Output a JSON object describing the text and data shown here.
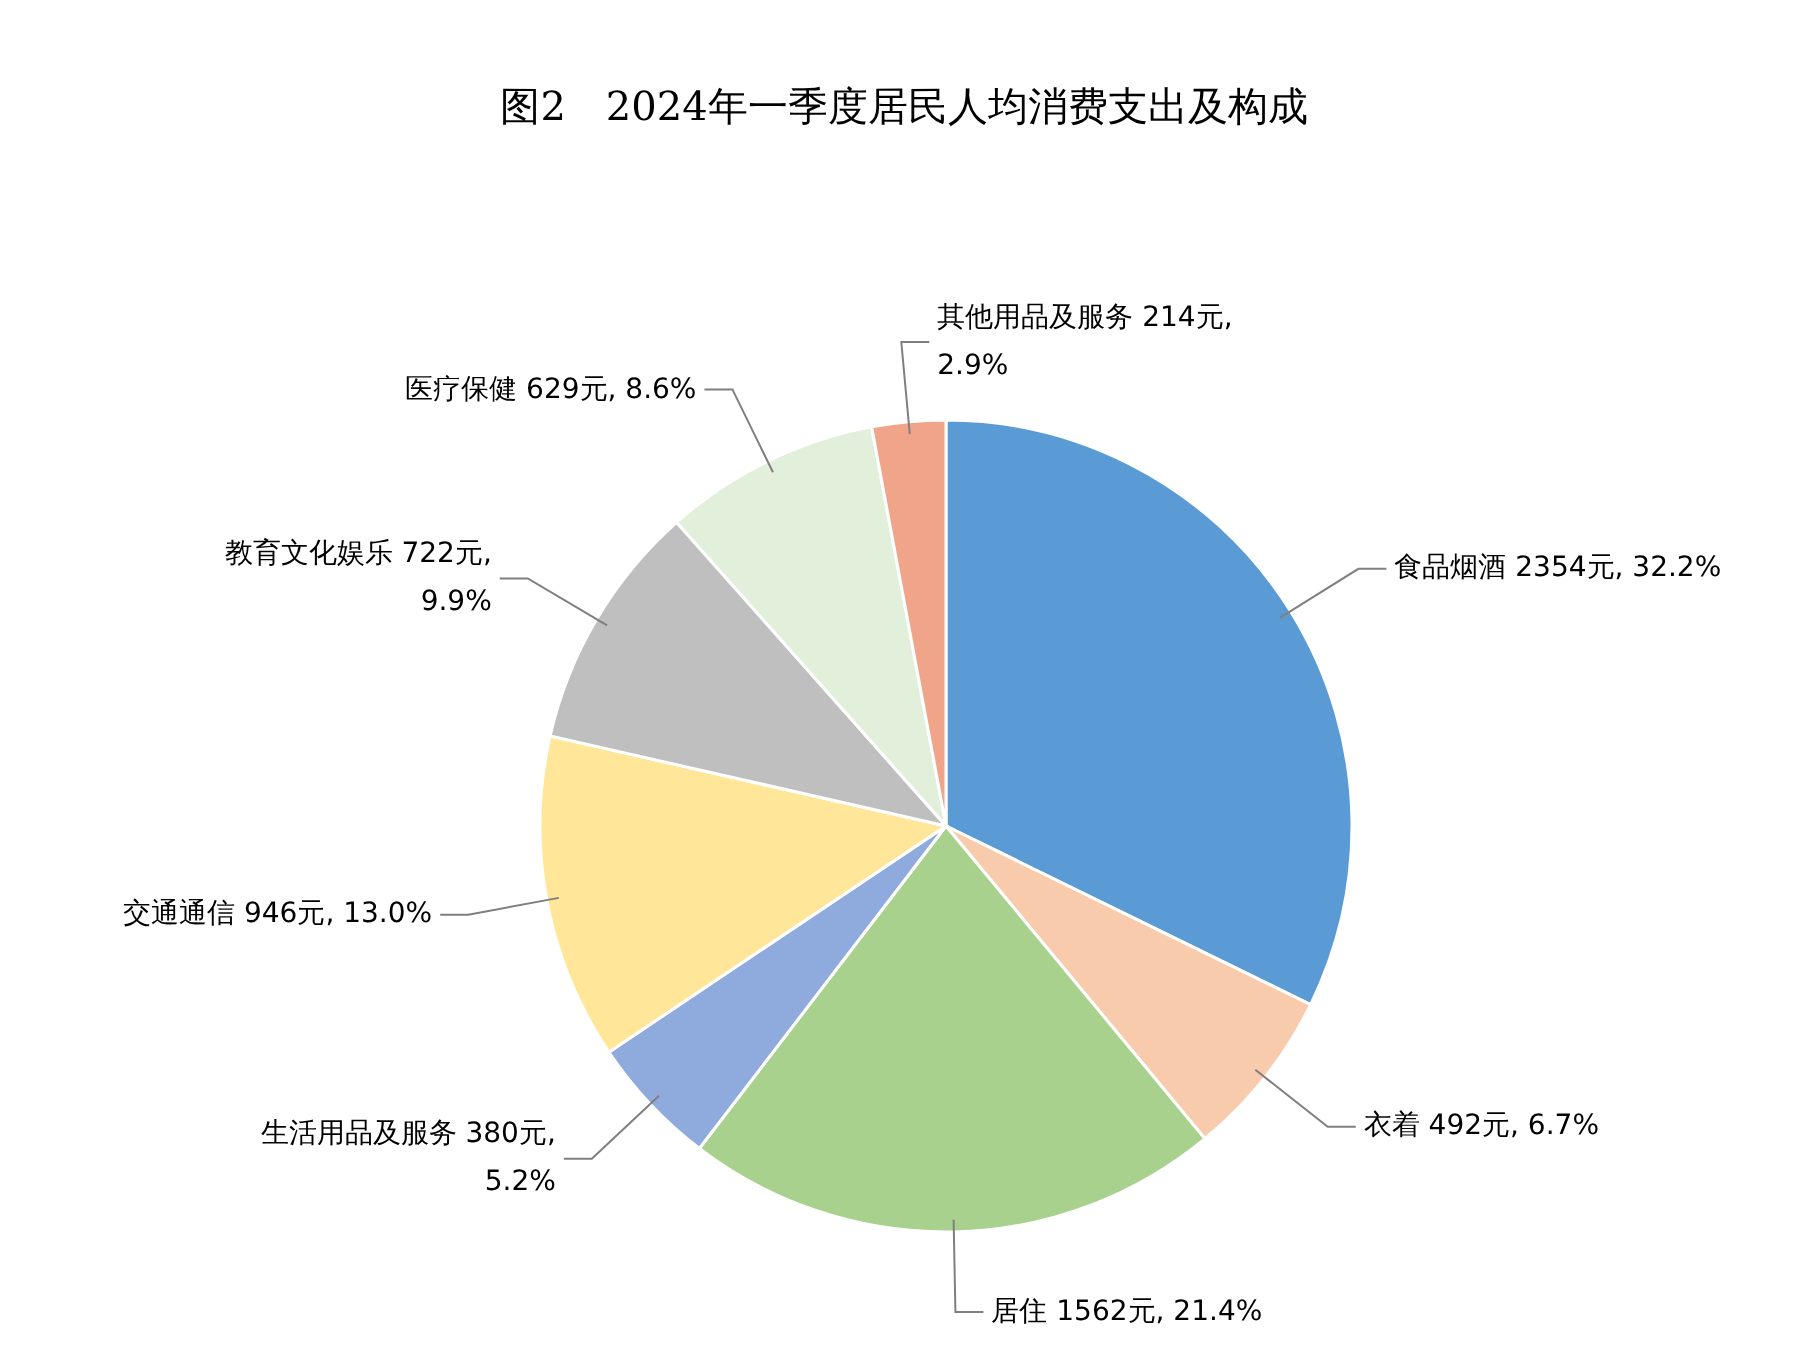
{
  "chart_data": {
    "type": "pie",
    "title": "图2　2024年一季度居民人均消费支出及构成",
    "categories": [
      "食品烟酒",
      "衣着",
      "居住",
      "生活用品及服务",
      "交通通信",
      "教育文化娱乐",
      "医疗保健",
      "其他用品及服务"
    ],
    "values": [
      2354,
      492,
      1562,
      380,
      946,
      722,
      629,
      214
    ],
    "value_labels": [
      "2354元, 32.2%",
      "492元, 6.7%",
      "1562元, 21.4%",
      "380元, 5.2%",
      "946元, 13.0%",
      "722元, 9.9%",
      "629元, 8.6%",
      "214元, 2.9%"
    ],
    "colors": [
      "#5b9bd5",
      "#f8cbad",
      "#a9d18e",
      "#8faadc",
      "#ffe699",
      "#bfbfbf",
      "#e2efda",
      "#f0a58a"
    ]
  }
}
